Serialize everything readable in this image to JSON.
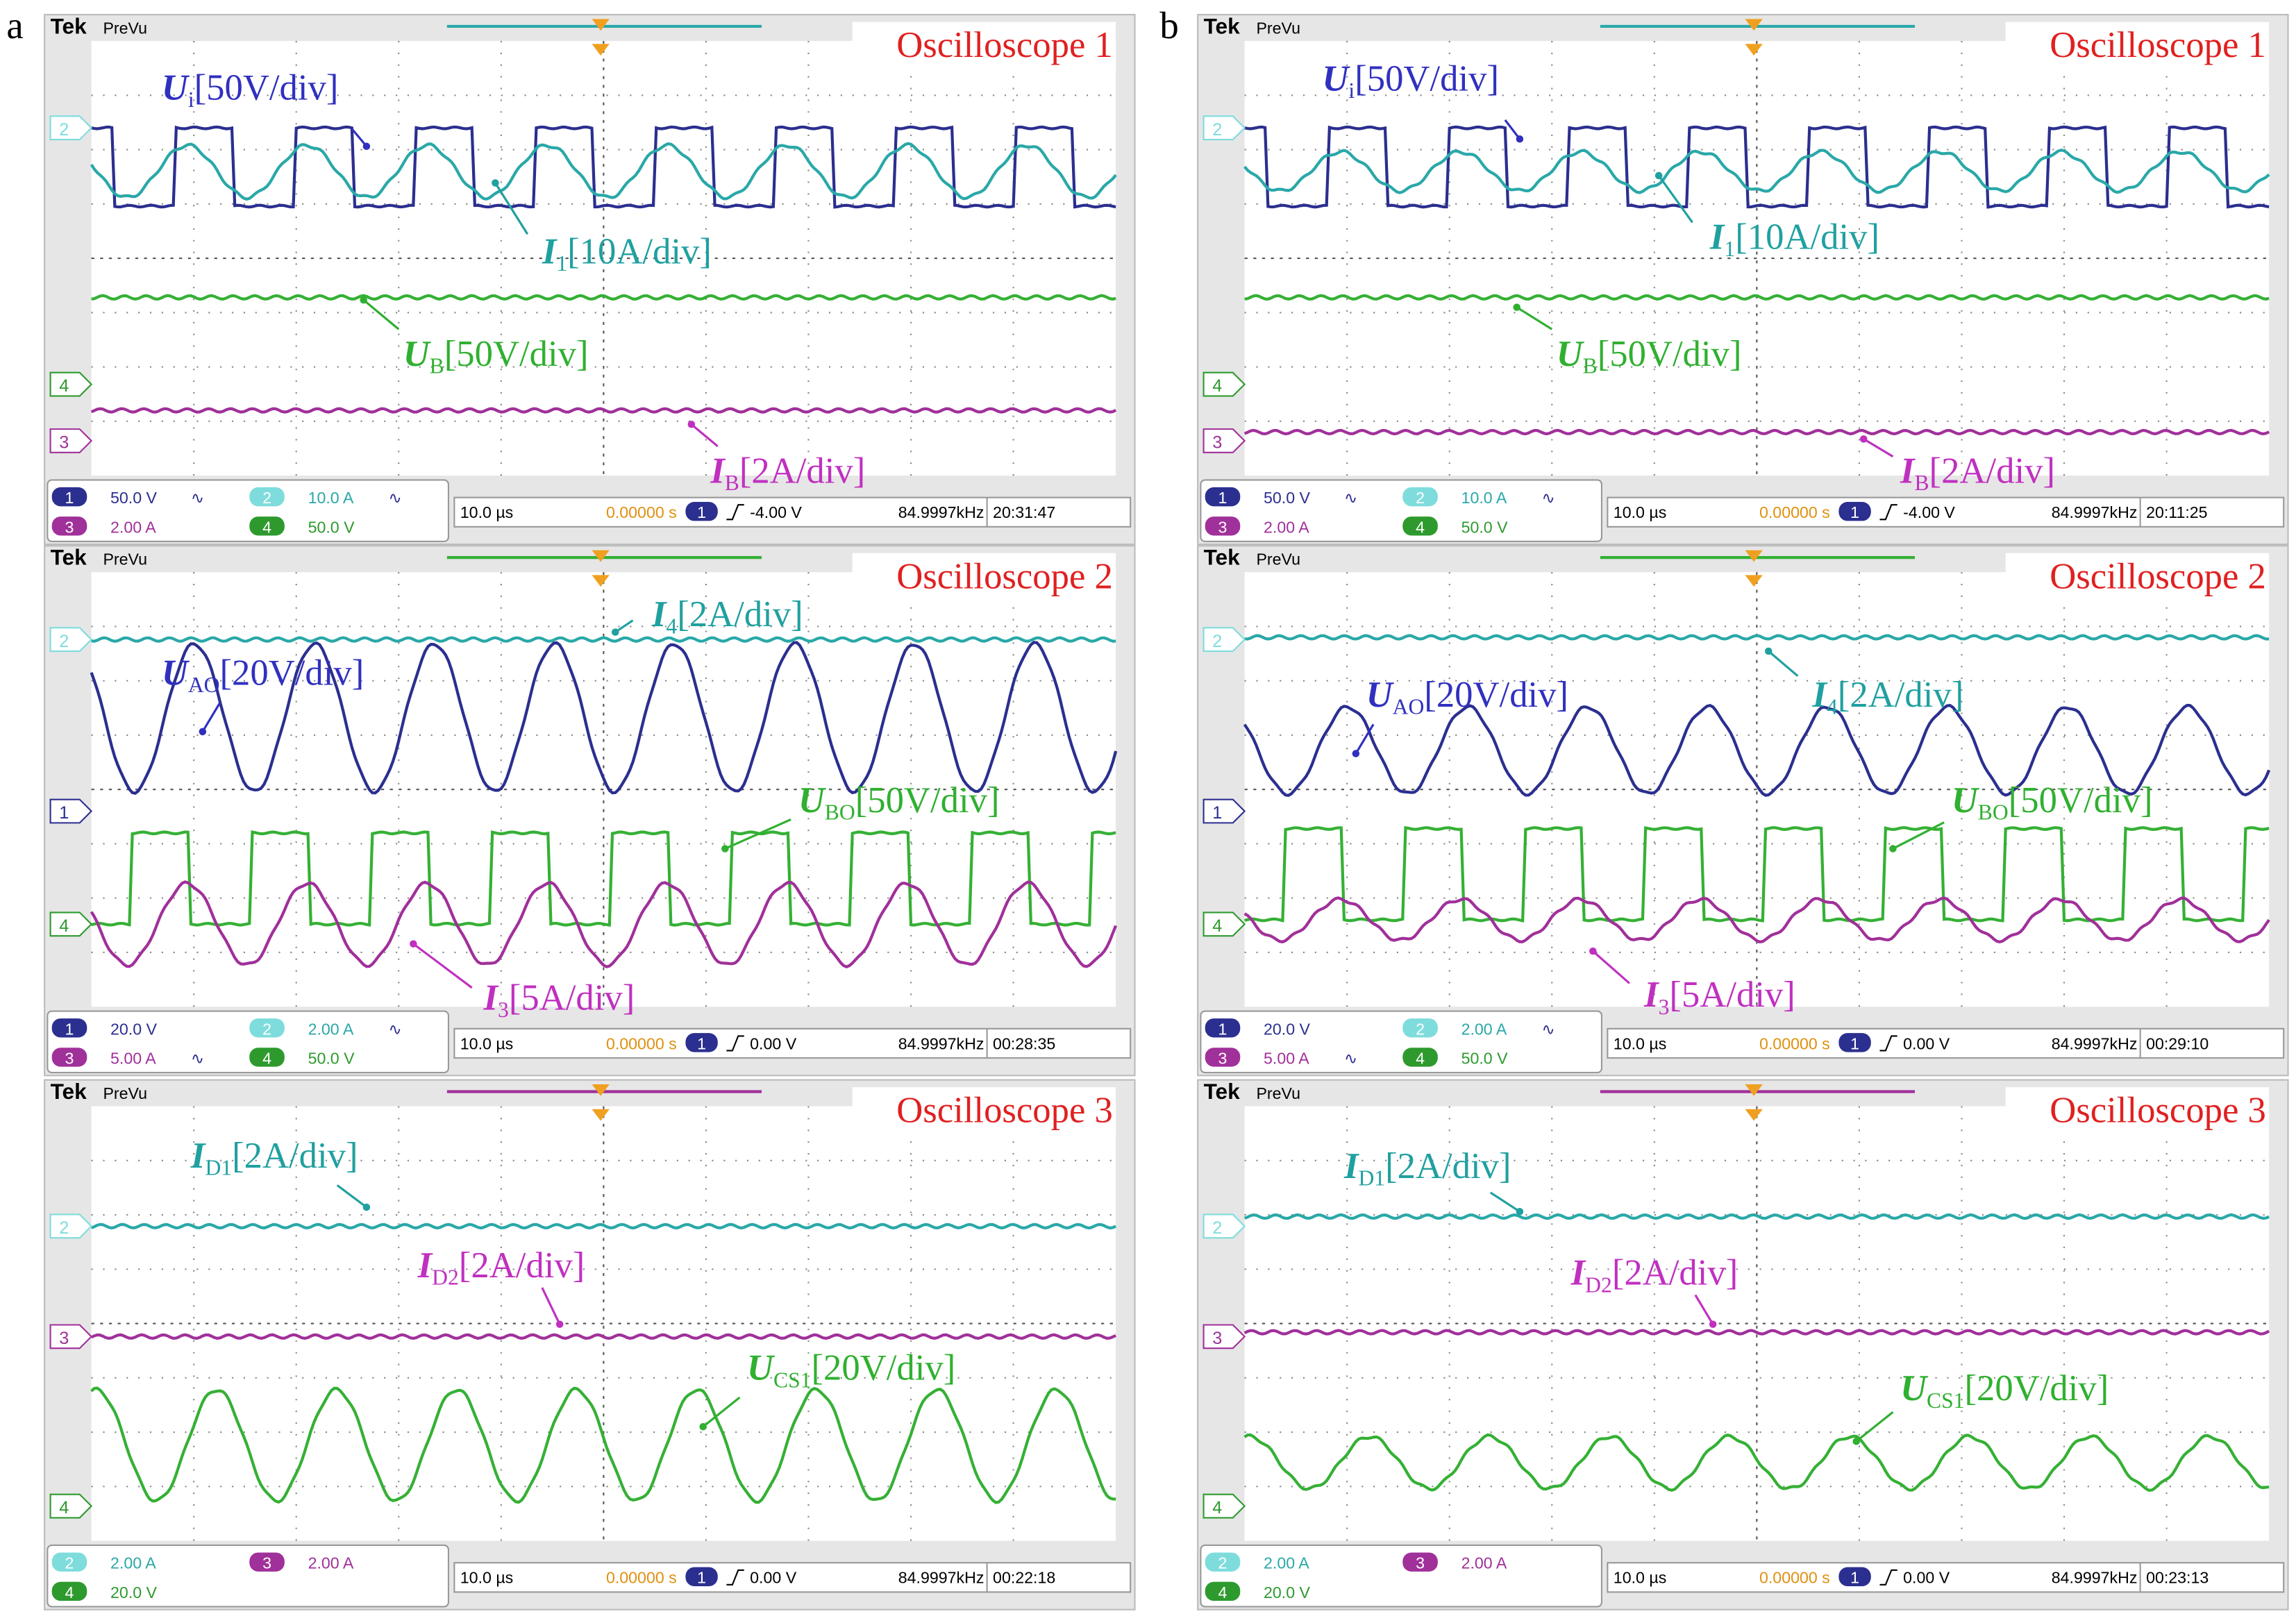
{
  "panels": [
    {
      "label": "a",
      "scopes": [
        {
          "brand": "Tek",
          "mode": "PreVu",
          "title": "Oscilloscope 1",
          "annotations": [
            {
              "symbol": "U",
              "sub": "i",
              "text": "[50V/div]"
            },
            {
              "symbol": "I",
              "sub": "1",
              "text": "[10A/div]"
            },
            {
              "symbol": "U",
              "sub": "B",
              "text": "[50V/div]"
            },
            {
              "symbol": "I",
              "sub": "B",
              "text": "[2A/div]"
            }
          ],
          "channel_markers": [
            "2",
            "4",
            "3"
          ],
          "readouts": [
            {
              "ch": "1",
              "value": "50.0 V",
              "coupling": "∿"
            },
            {
              "ch": "2",
              "value": "10.0 A",
              "coupling": "∿"
            },
            {
              "ch": "3",
              "value": "2.00 A"
            },
            {
              "ch": "4",
              "value": "50.0 V"
            }
          ],
          "timebase": "10.0 µs",
          "position": "0.00000 s",
          "trigger_channel": "1",
          "trigger": "-4.00 V",
          "frequency": "84.9997kHz",
          "time": "20:31:47"
        },
        {
          "brand": "Tek",
          "mode": "PreVu",
          "title": "Oscilloscope 2",
          "annotations": [
            {
              "symbol": "I",
              "sub": "4",
              "text": "[2A/div]"
            },
            {
              "symbol": "U",
              "sub": "AO",
              "text": "[20V/div]"
            },
            {
              "symbol": "U",
              "sub": "BO",
              "text": "[50V/div]"
            },
            {
              "symbol": "I",
              "sub": "3",
              "text": "[5A/div]"
            }
          ],
          "channel_markers": [
            "2",
            "1",
            "4"
          ],
          "readouts": [
            {
              "ch": "1",
              "value": "20.0 V"
            },
            {
              "ch": "2",
              "value": "2.00 A",
              "coupling": "∿"
            },
            {
              "ch": "3",
              "value": "5.00 A",
              "coupling": "∿"
            },
            {
              "ch": "4",
              "value": "50.0 V"
            }
          ],
          "timebase": "10.0 µs",
          "position": "0.00000 s",
          "trigger_channel": "1",
          "trigger": "0.00 V",
          "frequency": "84.9997kHz",
          "time": "00:28:35"
        },
        {
          "brand": "Tek",
          "mode": "PreVu",
          "title": "Oscilloscope 3",
          "annotations": [
            {
              "symbol": "I",
              "sub": "D1",
              "text": "[2A/div]"
            },
            {
              "symbol": "I",
              "sub": "D2",
              "text": "[2A/div]"
            },
            {
              "symbol": "U",
              "sub": "CS1",
              "text": "[20V/div]"
            }
          ],
          "channel_markers": [
            "2",
            "3",
            "4"
          ],
          "readouts": [
            {
              "ch": "2",
              "value": "2.00 A"
            },
            {
              "ch": "3",
              "value": "2.00 A"
            },
            {
              "ch": "4",
              "value": "20.0 V"
            }
          ],
          "timebase": "10.0 µs",
          "position": "0.00000 s",
          "trigger_channel": "1",
          "trigger": "0.00 V",
          "frequency": "84.9997kHz",
          "time": "00:22:18"
        }
      ]
    },
    {
      "label": "b",
      "scopes": [
        {
          "brand": "Tek",
          "mode": "PreVu",
          "title": "Oscilloscope 1",
          "annotations": [
            {
              "symbol": "U",
              "sub": "i",
              "text": "[50V/div]"
            },
            {
              "symbol": "I",
              "sub": "1",
              "text": "[10A/div]"
            },
            {
              "symbol": "U",
              "sub": "B",
              "text": "[50V/div]"
            },
            {
              "symbol": "I",
              "sub": "B",
              "text": "[2A/div]"
            }
          ],
          "channel_markers": [
            "2",
            "4",
            "3"
          ],
          "readouts": [
            {
              "ch": "1",
              "value": "50.0 V",
              "coupling": "∿"
            },
            {
              "ch": "2",
              "value": "10.0 A",
              "coupling": "∿"
            },
            {
              "ch": "3",
              "value": "2.00 A"
            },
            {
              "ch": "4",
              "value": "50.0 V"
            }
          ],
          "timebase": "10.0 µs",
          "position": "0.00000 s",
          "trigger_channel": "1",
          "trigger": "-4.00 V",
          "frequency": "84.9997kHz",
          "time": "20:11:25"
        },
        {
          "brand": "Tek",
          "mode": "PreVu",
          "title": "Oscilloscope 2",
          "annotations": [
            {
              "symbol": "I",
              "sub": "4",
              "text": "[2A/div]"
            },
            {
              "symbol": "U",
              "sub": "AO",
              "text": "[20V/div]"
            },
            {
              "symbol": "U",
              "sub": "BO",
              "text": "[50V/div]"
            },
            {
              "symbol": "I",
              "sub": "3",
              "text": "[5A/div]"
            }
          ],
          "channel_markers": [
            "2",
            "1",
            "4"
          ],
          "readouts": [
            {
              "ch": "1",
              "value": "20.0 V"
            },
            {
              "ch": "2",
              "value": "2.00 A",
              "coupling": "∿"
            },
            {
              "ch": "3",
              "value": "5.00 A",
              "coupling": "∿"
            },
            {
              "ch": "4",
              "value": "50.0 V"
            }
          ],
          "timebase": "10.0 µs",
          "position": "0.00000 s",
          "trigger_channel": "1",
          "trigger": "0.00 V",
          "frequency": "84.9997kHz",
          "time": "00:29:10"
        },
        {
          "brand": "Tek",
          "mode": "PreVu",
          "title": "Oscilloscope 3",
          "annotations": [
            {
              "symbol": "I",
              "sub": "D1",
              "text": "[2A/div]"
            },
            {
              "symbol": "I",
              "sub": "D2",
              "text": "[2A/div]"
            },
            {
              "symbol": "U",
              "sub": "CS1",
              "text": "[20V/div]"
            }
          ],
          "channel_markers": [
            "2",
            "3",
            "4"
          ],
          "readouts": [
            {
              "ch": "2",
              "value": "2.00 A"
            },
            {
              "ch": "3",
              "value": "2.00 A"
            },
            {
              "ch": "4",
              "value": "20.0 V"
            }
          ],
          "timebase": "10.0 µs",
          "position": "0.00000 s",
          "trigger_channel": "1",
          "trigger": "0.00 V",
          "frequency": "84.9997kHz",
          "time": "00:23:13"
        }
      ]
    }
  ]
}
